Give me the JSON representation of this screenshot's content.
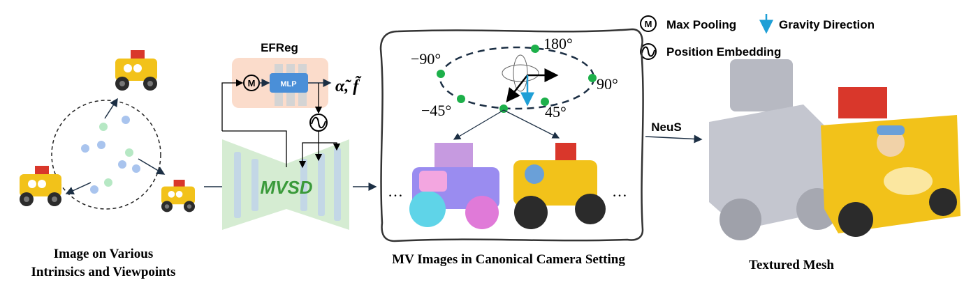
{
  "legend": {
    "max_pooling_symbol": "M",
    "max_pooling": "Max Pooling",
    "gravity_direction": "Gravity Direction",
    "position_embedding": "Position Embedding"
  },
  "input": {
    "caption_line1": "Image on Various",
    "caption_line2": "Intrinsics and Viewpoints"
  },
  "efreg": {
    "title": "EFReg",
    "pool_symbol": "M",
    "mlp_label": "MLP",
    "output": "α̃, f̃"
  },
  "mvsd": {
    "label": "MVSD"
  },
  "canonical": {
    "angles": [
      "180°",
      "−90°",
      "90°",
      "−45°",
      "45°"
    ],
    "ellipsis_left": "…",
    "ellipsis_right": "…",
    "caption": "MV Images in Canonical Camera Setting"
  },
  "neus": {
    "label": "NeuS"
  },
  "output": {
    "caption": "Textured Mesh"
  },
  "colors": {
    "green_dot": "#1db04a",
    "blue_dot": "#a9c4ee",
    "light_green_dot": "#b6e8c4",
    "gravity": "#1f9fd6",
    "efreg_bg": "#fbdccb",
    "mlp": "#4a8fd8",
    "mvsd_bg": "#d5ecd2",
    "mvsd_text": "#3a9a3a",
    "arrow": "#1c2f44",
    "truck_yellow": "#f2c21a"
  }
}
